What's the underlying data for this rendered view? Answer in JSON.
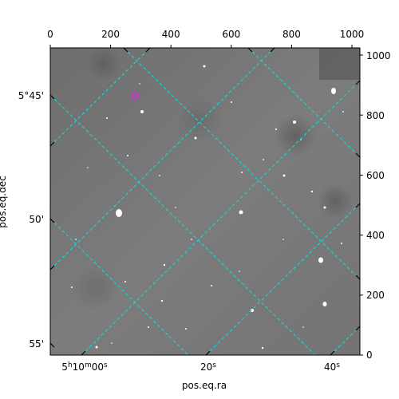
{
  "figure": {
    "xlabel": "pos.eq.ra",
    "ylabel": "pos.eq.dec",
    "pixel_x_ticks": [
      "0",
      "200",
      "400",
      "600",
      "800",
      "1000"
    ],
    "pixel_y_ticks": [
      "0",
      "200",
      "400",
      "600",
      "800",
      "1000"
    ],
    "ra_ticks": {
      "t0": {
        "h": "5",
        "m": "10",
        "s": "00",
        "h_unit": "h",
        "m_unit": "m",
        "s_unit": "s"
      },
      "t1": {
        "s": "20",
        "s_unit": "s"
      },
      "t2": {
        "s": "40",
        "s_unit": "s"
      }
    },
    "dec_ticks": [
      "5°45'",
      "50'",
      "55'"
    ],
    "colors": {
      "grid": "#00e5e5",
      "marker": "#d62de0",
      "sky_background": "#7a7a7a"
    },
    "marker_shape": "circle"
  }
}
